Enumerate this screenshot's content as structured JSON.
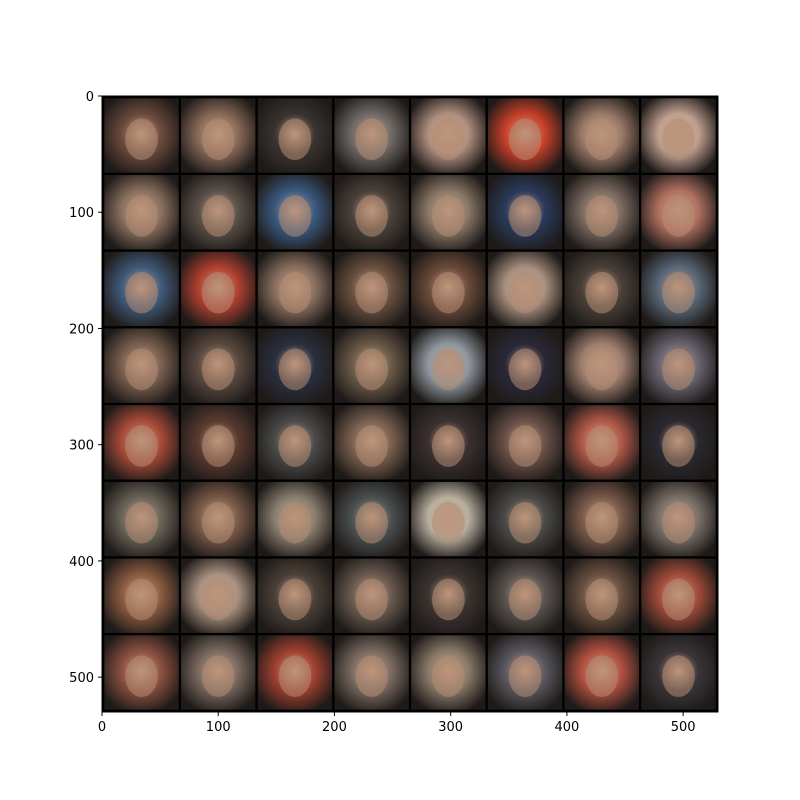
{
  "chart_data": {
    "type": "image-grid",
    "description_free": true,
    "grid": {
      "rows": 8,
      "cols": 8,
      "tile_px": 64,
      "separator_px": 2
    },
    "xlim": [
      0,
      530
    ],
    "ylim": [
      530,
      0
    ],
    "x_ticks": [
      0,
      100,
      200,
      300,
      400,
      500
    ],
    "y_ticks": [
      0,
      100,
      200,
      300,
      400,
      500
    ],
    "x_tick_labels": [
      "0",
      "100",
      "200",
      "300",
      "400",
      "500"
    ],
    "y_tick_labels": [
      "0",
      "100",
      "200",
      "300",
      "400",
      "500"
    ],
    "title": "",
    "xlabel": "",
    "ylabel": "",
    "colors": {
      "frame": "#000000",
      "separator": "#000000",
      "tiles": [
        [
          "#6b4a3c",
          "#8a6a58",
          "#3a3430",
          "#6f6a66",
          "#b09080",
          "#c8402a",
          "#9a7a68",
          "#c0a090"
        ],
        [
          "#8a7060",
          "#5a5048",
          "#3a5a80",
          "#4a403a",
          "#8a7868",
          "#2a3a5a",
          "#7a6a60",
          "#b07060"
        ],
        [
          "#405a7a",
          "#b04030",
          "#8a7060",
          "#6a5040",
          "#6a4a3a",
          "#a89080",
          "#4a4038",
          "#5a6878"
        ],
        [
          "#7a6050",
          "#5a4a40",
          "#2a3040",
          "#6a5a48",
          "#9098a0",
          "#2a2838",
          "#a08070",
          "#6a6470"
        ],
        [
          "#a84a38",
          "#5a3a30",
          "#4a4a48",
          "#7a6050",
          "#3a3030",
          "#6a5048",
          "#b05848",
          "#2a2830"
        ],
        [
          "#6a6458",
          "#7a5a48",
          "#8a8070",
          "#4a5050",
          "#b8b0a0",
          "#4a4a48",
          "#7a5a4a",
          "#7a7068"
        ],
        [
          "#8a5a40",
          "#a89080",
          "#4a4038",
          "#6a5a50",
          "#3a3430",
          "#5a5450",
          "#6a5040",
          "#a04a38"
        ],
        [
          "#8a5040",
          "#7a6a60",
          "#a04030",
          "#7a6a60",
          "#8a7a6a",
          "#5a5860",
          "#b05040",
          "#3a3438"
        ]
      ]
    }
  }
}
